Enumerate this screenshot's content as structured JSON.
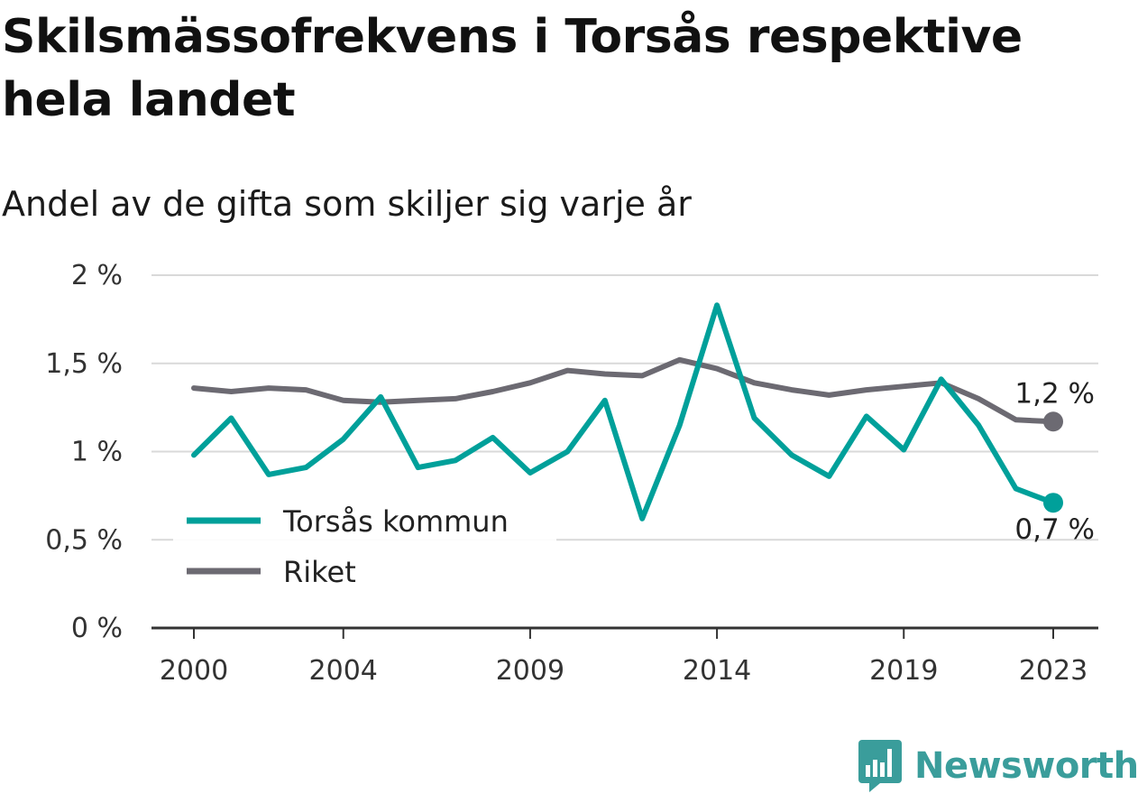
{
  "title": "Skilsmässofrekvens i Torsås respektive hela landet",
  "subtitle": "Andel av de gifta som skiljer sig varje år",
  "brand": {
    "name": "Newsworthy",
    "icon": "newsworthy-logo-icon",
    "color": "#3a9d9b"
  },
  "chart_data": {
    "type": "line",
    "x": [
      2000,
      2001,
      2002,
      2003,
      2004,
      2005,
      2006,
      2007,
      2008,
      2009,
      2010,
      2011,
      2012,
      2013,
      2014,
      2015,
      2016,
      2017,
      2018,
      2019,
      2020,
      2021,
      2022,
      2023
    ],
    "series": [
      {
        "name": "Torsås kommun",
        "color": "#00a09a",
        "values": [
          0.98,
          1.19,
          0.87,
          0.91,
          1.07,
          1.31,
          0.91,
          0.95,
          1.08,
          0.88,
          1.0,
          1.29,
          0.62,
          1.15,
          1.83,
          1.19,
          0.98,
          0.86,
          1.2,
          1.01,
          1.41,
          1.15,
          0.79,
          0.71
        ],
        "end_label": "0,7 %"
      },
      {
        "name": "Riket",
        "color": "#6c6a72",
        "values": [
          1.36,
          1.34,
          1.36,
          1.35,
          1.29,
          1.28,
          1.29,
          1.3,
          1.34,
          1.39,
          1.46,
          1.44,
          1.43,
          1.52,
          1.47,
          1.39,
          1.35,
          1.32,
          1.35,
          1.37,
          1.39,
          1.3,
          1.18,
          1.17
        ],
        "end_label": "1,2 %"
      }
    ],
    "ylim": [
      0,
      2
    ],
    "yticks": [
      0,
      0.5,
      1,
      1.5,
      2
    ],
    "ytick_labels": [
      "0 %",
      "0,5 %",
      "1 %",
      "1,5 %",
      "2 %"
    ],
    "xticks": [
      2000,
      2004,
      2009,
      2014,
      2019,
      2023
    ],
    "xtick_labels": [
      "2000",
      "2004",
      "2009",
      "2014",
      "2019",
      "2023"
    ],
    "grid": true,
    "legend": "bottom-left"
  }
}
